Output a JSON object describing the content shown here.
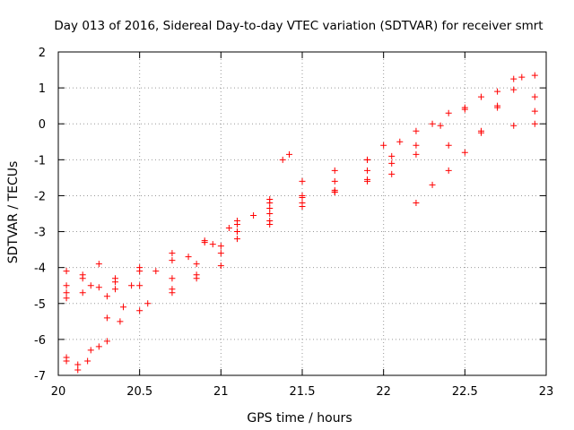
{
  "chart_data": {
    "type": "scatter",
    "title": "Day 013 of 2016, Sidereal Day-to-day VTEC variation (SDTVAR) for receiver smrt",
    "xlabel": "GPS time / hours",
    "ylabel": "SDTVAR / TECUs",
    "xlim": [
      20,
      23
    ],
    "ylim": [
      -7,
      2
    ],
    "xticks": [
      20,
      20.5,
      21,
      21.5,
      22,
      22.5,
      23
    ],
    "xtick_labels": [
      "20",
      "20.5",
      "21",
      "21.5",
      "22",
      "22.5",
      "23"
    ],
    "yticks": [
      -7,
      -6,
      -5,
      -4,
      -3,
      -2,
      -1,
      0,
      1,
      2
    ],
    "ytick_labels": [
      "-7",
      "-6",
      "-5",
      "-4",
      "-3",
      "-2",
      "-1",
      "0",
      "1",
      "2"
    ],
    "grid": true,
    "grid_style": "dotted",
    "marker": "+",
    "color": "#ff0000",
    "series": [
      {
        "points": [
          [
            20.05,
            -4.5
          ],
          [
            20.15,
            -4.3
          ],
          [
            20.25,
            -4.55
          ],
          [
            20.35,
            -4.3
          ],
          [
            20.5,
            -4.0
          ],
          [
            20.7,
            -3.6
          ],
          [
            20.9,
            -3.25
          ],
          [
            21.05,
            -2.9
          ],
          [
            21.2,
            -2.55
          ],
          [
            21.3,
            -2.2
          ],
          [
            21.38,
            -1.0
          ],
          [
            21.42,
            -0.85
          ]
        ]
      },
      {
        "points": [
          [
            20.05,
            -4.7
          ],
          [
            20.2,
            -4.5
          ],
          [
            20.35,
            -4.6
          ],
          [
            20.5,
            -4.1
          ],
          [
            20.7,
            -3.8
          ],
          [
            20.9,
            -3.3
          ],
          [
            21.1,
            -2.7
          ],
          [
            21.3,
            -2.1
          ],
          [
            21.5,
            -1.6
          ],
          [
            21.7,
            -1.3
          ],
          [
            21.9,
            -1.0
          ],
          [
            22.0,
            -0.6
          ],
          [
            22.2,
            -0.2
          ],
          [
            22.4,
            0.3
          ],
          [
            22.6,
            0.75
          ],
          [
            22.8,
            1.25
          ],
          [
            22.93,
            1.35
          ]
        ]
      },
      {
        "points": [
          [
            20.05,
            -4.1
          ],
          [
            20.15,
            -4.2
          ],
          [
            20.25,
            -3.9
          ],
          [
            20.35,
            -4.4
          ],
          [
            20.5,
            -4.5
          ],
          [
            20.7,
            -4.6
          ],
          [
            20.85,
            -4.2
          ],
          [
            21.0,
            -3.95
          ]
        ]
      },
      {
        "points": [
          [
            20.05,
            -6.5
          ],
          [
            20.12,
            -6.7
          ],
          [
            20.2,
            -6.3
          ],
          [
            20.3,
            -6.05
          ],
          [
            20.38,
            -5.5
          ],
          [
            20.5,
            -5.2
          ],
          [
            20.7,
            -4.7
          ],
          [
            20.85,
            -4.3
          ],
          [
            21.0,
            -3.6
          ],
          [
            21.1,
            -3.2
          ],
          [
            21.3,
            -2.8
          ],
          [
            21.5,
            -2.3
          ],
          [
            21.7,
            -1.85
          ],
          [
            21.9,
            -1.3
          ],
          [
            22.05,
            -0.9
          ],
          [
            22.2,
            -0.85
          ],
          [
            22.4,
            -0.6
          ],
          [
            22.6,
            -0.25
          ],
          [
            22.8,
            -0.05
          ],
          [
            22.93,
            0.0
          ]
        ]
      },
      {
        "points": [
          [
            20.05,
            -6.6
          ],
          [
            20.12,
            -6.85
          ],
          [
            20.18,
            -6.6
          ],
          [
            20.25,
            -6.2
          ],
          [
            20.3,
            -5.4
          ],
          [
            20.4,
            -5.1
          ],
          [
            20.55,
            -5.0
          ],
          [
            20.7,
            -4.3
          ],
          [
            20.85,
            -3.9
          ],
          [
            21.0,
            -3.4
          ],
          [
            21.1,
            -3.0
          ],
          [
            21.3,
            -2.5
          ],
          [
            21.5,
            -2.05
          ],
          [
            21.7,
            -1.6
          ],
          [
            21.9,
            -1.0
          ],
          [
            22.1,
            -0.5
          ],
          [
            22.3,
            0.0
          ],
          [
            22.5,
            0.4
          ],
          [
            22.7,
            0.9
          ],
          [
            22.85,
            1.3
          ]
        ]
      },
      {
        "points": [
          [
            20.05,
            -4.85
          ],
          [
            20.15,
            -4.7
          ],
          [
            20.3,
            -4.8
          ],
          [
            20.45,
            -4.5
          ],
          [
            20.6,
            -4.1
          ],
          [
            20.8,
            -3.7
          ],
          [
            20.95,
            -3.35
          ],
          [
            21.1,
            -3.0
          ],
          [
            21.3,
            -2.7
          ],
          [
            21.5,
            -2.2
          ],
          [
            21.7,
            -1.9
          ],
          [
            21.9,
            -1.55
          ],
          [
            22.05,
            -1.4
          ]
        ]
      },
      {
        "points": [
          [
            21.1,
            -2.8
          ],
          [
            21.3,
            -2.35
          ],
          [
            21.5,
            -2.0
          ],
          [
            21.7,
            -1.9
          ],
          [
            21.9,
            -1.6
          ],
          [
            22.05,
            -1.1
          ],
          [
            22.2,
            -0.6
          ],
          [
            22.35,
            -0.05
          ],
          [
            22.5,
            0.45
          ],
          [
            22.7,
            0.5
          ],
          [
            22.93,
            0.35
          ]
        ]
      },
      {
        "points": [
          [
            22.2,
            -2.2
          ],
          [
            22.3,
            -1.7
          ],
          [
            22.4,
            -1.3
          ],
          [
            22.5,
            -0.8
          ],
          [
            22.6,
            -0.2
          ],
          [
            22.7,
            0.45
          ],
          [
            22.8,
            0.95
          ],
          [
            22.93,
            0.75
          ]
        ]
      }
    ]
  }
}
